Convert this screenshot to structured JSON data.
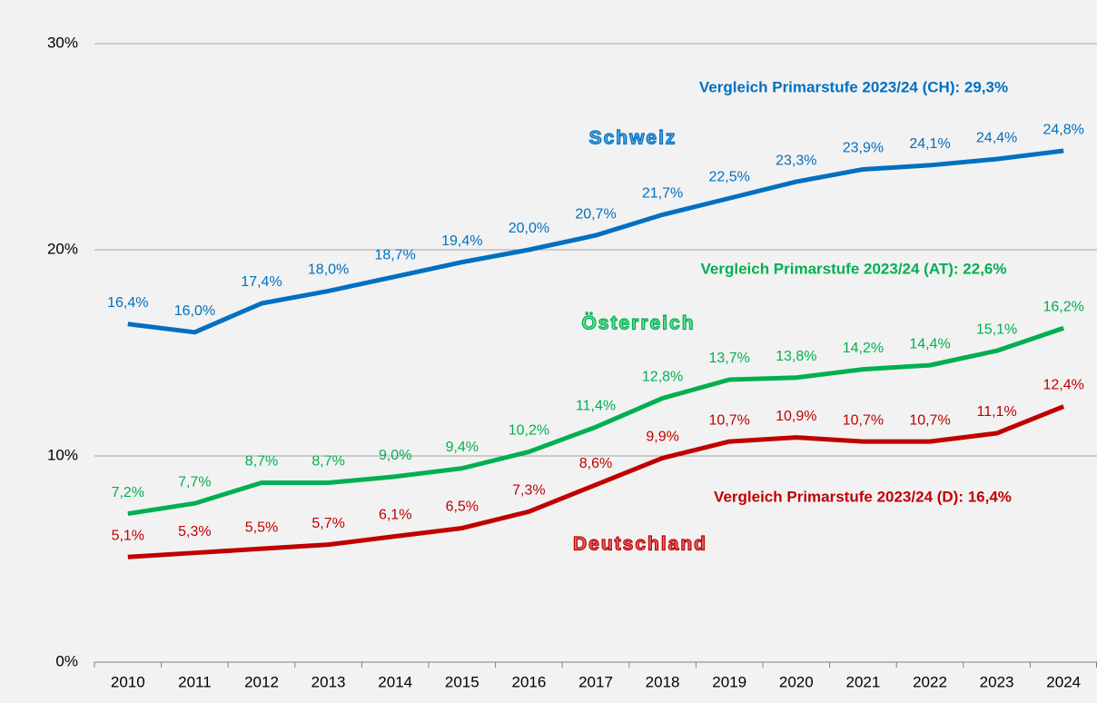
{
  "chart_data": {
    "type": "line",
    "categories": [
      "2010",
      "2011",
      "2012",
      "2013",
      "2014",
      "2015",
      "2016",
      "2017",
      "2018",
      "2019",
      "2020",
      "2021",
      "2022",
      "2023",
      "2024"
    ],
    "ylim": [
      0,
      30
    ],
    "yticks": [
      {
        "value": 0,
        "label": "0%"
      },
      {
        "value": 10,
        "label": "10%"
      },
      {
        "value": 20,
        "label": "20%"
      },
      {
        "value": 30,
        "label": "30%"
      }
    ],
    "grid": true,
    "series": [
      {
        "name": "Schweiz",
        "color": "#0070c0",
        "values": [
          16.4,
          16.0,
          17.4,
          18.0,
          18.7,
          19.4,
          20.0,
          20.7,
          21.7,
          22.5,
          23.3,
          23.9,
          24.1,
          24.4,
          24.8
        ],
        "value_labels": [
          "16,4%",
          "16,0%",
          "17,4%",
          "18,0%",
          "18,7%",
          "19,4%",
          "20,0%",
          "20,7%",
          "21,7%",
          "22,5%",
          "23,3%",
          "23,9%",
          "24,1%",
          "24,4%",
          "24,8%"
        ]
      },
      {
        "name": "Österreich",
        "color": "#00b050",
        "values": [
          7.2,
          7.7,
          8.7,
          8.7,
          9.0,
          9.4,
          10.2,
          11.4,
          12.8,
          13.7,
          13.8,
          14.2,
          14.4,
          15.1,
          16.2
        ],
        "value_labels": [
          "7,2%",
          "7,7%",
          "8,7%",
          "8,7%",
          "9,0%",
          "9,4%",
          "10,2%",
          "11,4%",
          "12,8%",
          "13,7%",
          "13,8%",
          "14,2%",
          "14,4%",
          "15,1%",
          "16,2%"
        ]
      },
      {
        "name": "Deutschland",
        "color": "#c00000",
        "values": [
          5.1,
          5.3,
          5.5,
          5.7,
          6.1,
          6.5,
          7.3,
          8.6,
          9.9,
          10.7,
          10.9,
          10.7,
          10.7,
          11.1,
          12.4
        ],
        "value_labels": [
          "5,1%",
          "5,3%",
          "5,5%",
          "5,7%",
          "6,1%",
          "6,5%",
          "7,3%",
          "8,6%",
          "9,9%",
          "10,7%",
          "10,9%",
          "10,7%",
          "10,7%",
          "11,1%",
          "12,4%"
        ]
      }
    ],
    "annotations": [
      "Vergleich Primarstufe 2023/24 (CH): 29,3%",
      "Vergleich Primarstufe 2023/24 (AT): 22,6%",
      "Vergleich Primarstufe 2023/24 (D): 16,4%"
    ]
  }
}
